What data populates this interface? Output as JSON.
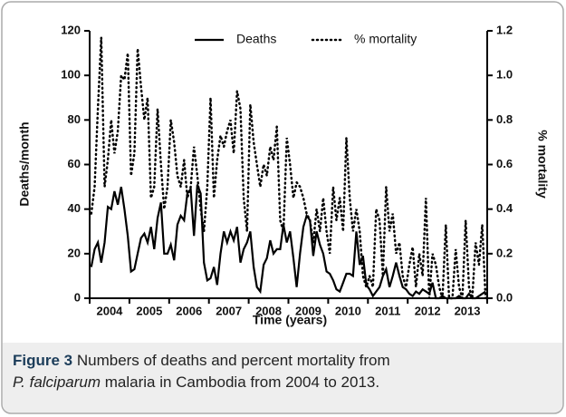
{
  "chart_data": {
    "type": "line",
    "categories": [
      "2004",
      "2005",
      "2006",
      "2007",
      "2008",
      "2009",
      "2010",
      "2011",
      "2012",
      "2013"
    ],
    "xlabel": "Time (years)",
    "ylabel": "Deaths/month",
    "y2label": "% mortality",
    "ylim": [
      0,
      120
    ],
    "yticks": [
      0,
      20,
      40,
      60,
      80,
      100,
      120
    ],
    "y2lim": [
      0,
      1.2
    ],
    "y2ticks": [
      {
        "value": 0,
        "label": "0.0"
      },
      0.2,
      0.4,
      0.6,
      0.8,
      {
        "value": 1,
        "label": "1.0"
      },
      1.2
    ],
    "legend": "top",
    "series": [
      {
        "name": "Deaths",
        "color": "#000000",
        "style": "solid",
        "values": [
          [
            14,
            22,
            25,
            16,
            25,
            41,
            40,
            48,
            42,
            50,
            40,
            28
          ],
          [
            12,
            13,
            20,
            27,
            29,
            25,
            32,
            22,
            36,
            43,
            20,
            20
          ],
          [
            24,
            17,
            33,
            37,
            35,
            47,
            49,
            28,
            51,
            47,
            16,
            8
          ],
          [
            9,
            14,
            6,
            20,
            30,
            25,
            30,
            26,
            32,
            16,
            22,
            25
          ],
          [
            30,
            14,
            5,
            3,
            15,
            18,
            26,
            20,
            22,
            22,
            33,
            25
          ],
          [
            30,
            18,
            5,
            20,
            32,
            37,
            35,
            19,
            30,
            24,
            20,
            12
          ],
          [
            11,
            8,
            4,
            3,
            7,
            11,
            11,
            10,
            30,
            15,
            19,
            6
          ],
          [
            4,
            1,
            3,
            5,
            10,
            13,
            5,
            10,
            16,
            10,
            5,
            4
          ],
          [
            2,
            1,
            3,
            2,
            4,
            3,
            2,
            7,
            0,
            0,
            1,
            0
          ],
          [
            0,
            0,
            0,
            1,
            0,
            0,
            2,
            0,
            0,
            1,
            2,
            3
          ]
        ]
      },
      {
        "name": "% mortality",
        "color": "#000000",
        "style": "dotted",
        "axis": "y2",
        "values": [
          [
            0.38,
            0.5,
            0.85,
            1.17,
            0.5,
            0.62,
            0.8,
            0.65,
            0.75,
            1.0,
            0.98,
            1.1
          ],
          [
            0.55,
            0.65,
            1.12,
            0.95,
            0.8,
            0.9,
            0.45,
            0.5,
            0.85,
            0.6,
            0.4,
            0.5
          ],
          [
            0.8,
            0.7,
            0.55,
            0.5,
            0.62,
            0.45,
            0.5,
            0.68,
            0.55,
            0.4,
            0.3,
            0.5
          ],
          [
            0.9,
            0.45,
            0.62,
            0.73,
            0.68,
            0.75,
            0.8,
            0.65,
            0.93,
            0.85,
            0.45,
            0.3
          ],
          [
            0.87,
            0.7,
            0.6,
            0.5,
            0.6,
            0.55,
            0.68,
            0.62,
            0.77,
            0.35,
            0.3,
            0.72
          ],
          [
            0.6,
            0.45,
            0.52,
            0.5,
            0.45,
            0.38,
            0.35,
            0.25,
            0.4,
            0.3,
            0.45,
            0.3
          ],
          [
            0.2,
            0.5,
            0.35,
            0.45,
            0.3,
            0.72,
            0.45,
            0.3,
            0.4,
            0.3,
            0.1,
            0.05
          ],
          [
            0.1,
            0.05,
            0.4,
            0.35,
            0.1,
            0.5,
            0.3,
            0.38,
            0.2,
            0.25,
            0.1,
            0.05
          ],
          [
            0.15,
            0.23,
            0.05,
            0.2,
            0.1,
            0.45,
            0,
            0.2,
            0.15,
            0.05,
            0,
            0.33
          ],
          [
            0,
            0,
            0.22,
            0.05,
            0,
            0.35,
            0.05,
            0,
            0.25,
            0.15,
            0.33,
            0
          ]
        ]
      }
    ]
  },
  "caption": {
    "label": "Figure 3",
    "text1": " Numbers of deaths and percent mortality from ",
    "species": "P. falciparum",
    "text2": " malaria in Cambodia from 2004 to 2013."
  }
}
